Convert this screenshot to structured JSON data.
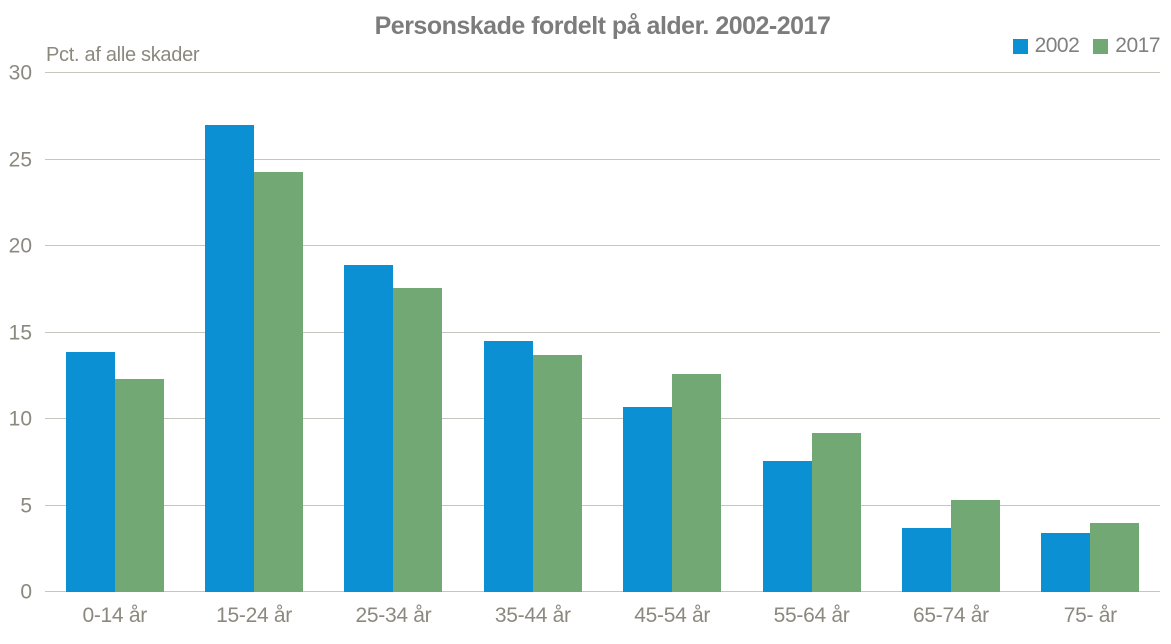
{
  "title": "Personskade fordelt på alder. 2002-2017",
  "axis_unit_label": "Pct. af alle skader",
  "legend": {
    "items": [
      {
        "label": "2002",
        "color": "#0b90d3"
      },
      {
        "label": "2017",
        "color": "#72a873"
      }
    ]
  },
  "colors": {
    "series_2002": "#0b90d3",
    "series_2017": "#72a873",
    "gridline": "#c8c5bc",
    "title_text": "#7c7c7c",
    "axis_text": "#8b897f",
    "background": "#ffffff"
  },
  "chart_data": {
    "type": "bar",
    "title": "Personskade fordelt på alder. 2002-2017",
    "xlabel": "",
    "ylabel": "Pct. af alle skader",
    "categories": [
      "0-14 år",
      "15-24 år",
      "25-34 år",
      "35-44 år",
      "45-54 år",
      "55-64 år",
      "65-74 år",
      "75- år"
    ],
    "series": [
      {
        "name": "2002",
        "color": "#0b90d3",
        "values": [
          13.9,
          27.0,
          18.9,
          14.5,
          10.7,
          7.6,
          3.7,
          3.4
        ]
      },
      {
        "name": "2017",
        "color": "#72a873",
        "values": [
          12.3,
          24.3,
          17.6,
          13.7,
          12.6,
          9.2,
          5.3,
          4.0
        ]
      }
    ],
    "ylim": [
      0,
      30
    ],
    "yticks": [
      0,
      5,
      10,
      15,
      20,
      25,
      30
    ],
    "grid": true,
    "legend_position": "top-right"
  }
}
